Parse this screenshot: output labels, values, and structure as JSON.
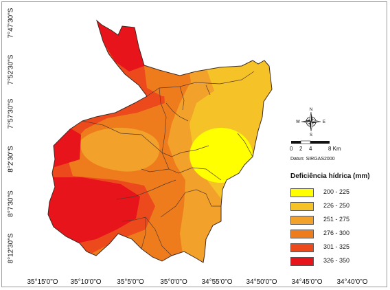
{
  "map": {
    "latitude_labels": [
      "7°47'30\"S",
      "7°52'30\"S",
      "7°57'30\"S",
      "8°2'30\"S",
      "8°7'30\"S",
      "8°12'30\"S"
    ],
    "longitude_labels": [
      "35°15'0\"O",
      "35°10'0\"O",
      "35°5'0\"O",
      "35°0'0\"O",
      "34°55'0\"O",
      "34°50'0\"O",
      "34°45'0\"O",
      "34°40'0\"O"
    ]
  },
  "north_arrow": {
    "n": "N",
    "s": "S",
    "e": "E",
    "w": "W"
  },
  "scale_bar": {
    "ticks": [
      "0",
      "2",
      "4",
      "8 Km"
    ],
    "datum": "Datun: SIRGAS2000"
  },
  "legend": {
    "title": "Deficiência hídrica (mm)",
    "classes": [
      {
        "label": "200 - 225",
        "color": "#ffff00"
      },
      {
        "label": "226 - 250",
        "color": "#f5c228"
      },
      {
        "label": "251 - 275",
        "color": "#f2a12a"
      },
      {
        "label": "276 - 300",
        "color": "#ee7c1d"
      },
      {
        "label": "301 - 325",
        "color": "#ec4a1c"
      },
      {
        "label": "326 - 350",
        "color": "#e8141b"
      }
    ]
  }
}
